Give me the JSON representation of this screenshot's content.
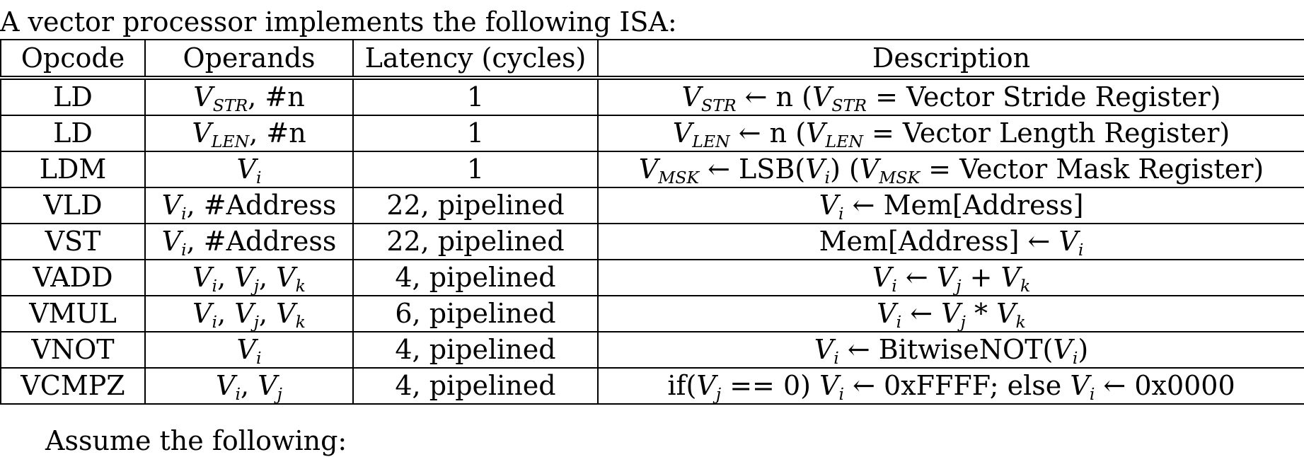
{
  "intro_text": "A vector processor implements the following ISA:",
  "outro_text": "Assume the following:",
  "table": {
    "headers": [
      "Opcode",
      "Operands",
      "Latency (cycles)",
      "Description"
    ],
    "rows": [
      [
        "LD",
        "V_STR, #n",
        "1",
        "V_STR ← n (V_STR = Vector Stride Register)"
      ],
      [
        "LD",
        "V_LEN, #n",
        "1",
        "V_LEN ← n (V_LEN = Vector Length Register)"
      ],
      [
        "LDM",
        "V_i",
        "1",
        "V_MSK ← LSB(V_i) (V_MSK = Vector Mask Register)"
      ],
      [
        "VLD",
        "V_i, #Address",
        "22, pipelined",
        "V_i ← Mem[Address]"
      ],
      [
        "VST",
        "V_i, #Address",
        "22, pipelined",
        "Mem[Address] ← V_i"
      ],
      [
        "VADD",
        "V_i, V_j, V_k",
        "4, pipelined",
        "V_i ← V_j + V_k"
      ],
      [
        "VMUL",
        "V_i, V_j, V_k",
        "6, pipelined",
        "V_i ← V_j * V_k"
      ],
      [
        "VNOT",
        "V_i",
        "4, pipelined",
        "V_i ← BitwiseNOT(V_i)"
      ],
      [
        "VCMPZ",
        "V_i, V_j",
        "4, pipelined",
        "if(V_j == 0) V_i ← 0xFFFF; else V_i ← 0x0000"
      ]
    ]
  }
}
